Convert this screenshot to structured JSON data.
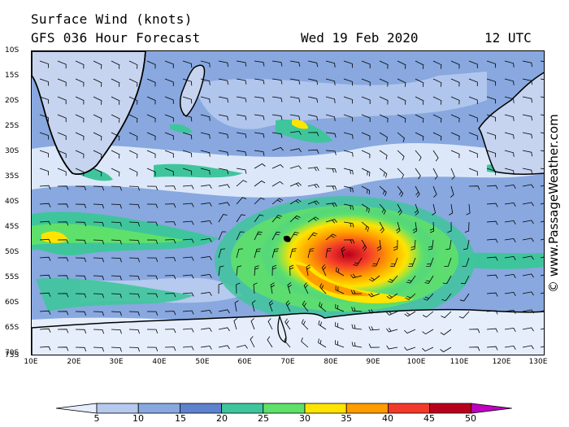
{
  "header": {
    "title": "Surface Wind (knots)",
    "subtitle": "GFS 036 Hour Forecast",
    "date": "Wed 19 Feb 2020",
    "time": "12 UTC"
  },
  "credit": "© www.PassageWeather.com",
  "lat_labels": [
    "10S",
    "15S",
    "20S",
    "25S",
    "30S",
    "35S",
    "40S",
    "45S",
    "50S",
    "55S",
    "60S",
    "65S",
    "70S",
    "75S"
  ],
  "lon_labels": [
    "10E",
    "20E",
    "30E",
    "40E",
    "50E",
    "60E",
    "70E",
    "80E",
    "90E",
    "100E",
    "110E",
    "120E",
    "130E"
  ],
  "legend": {
    "labels": [
      "5",
      "10",
      "15",
      "20",
      "25",
      "30",
      "35",
      "40",
      "45",
      "50"
    ],
    "colors": [
      "#e6eefc",
      "#b6c9ee",
      "#88a8df",
      "#5f82cf",
      "#3fc59c",
      "#5fe06a",
      "#ffe400",
      "#ff9c00",
      "#f23a2a",
      "#b8001c",
      "#c000c0"
    ]
  }
}
